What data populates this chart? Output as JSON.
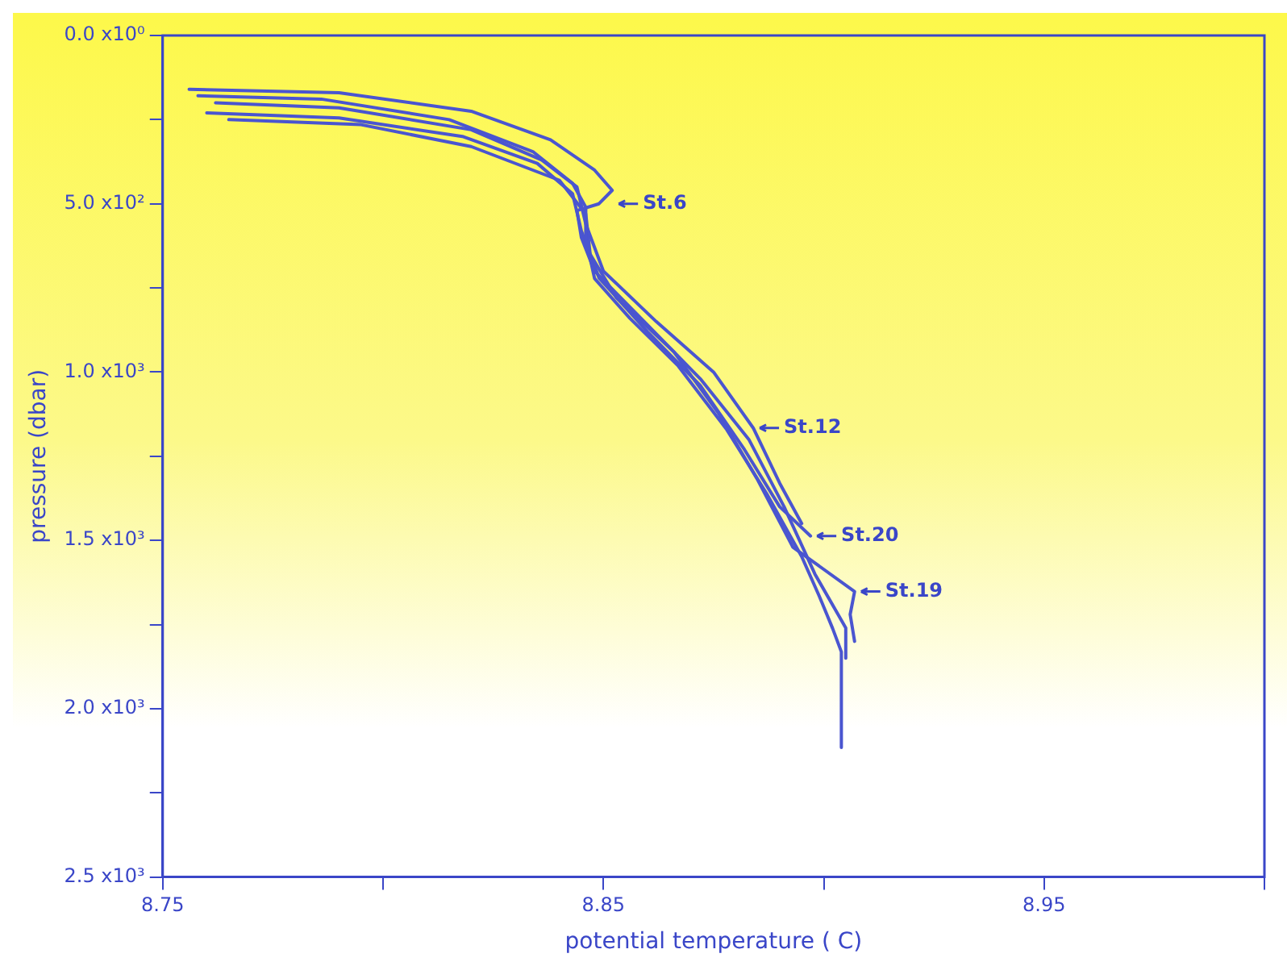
{
  "chart_data": {
    "type": "line",
    "xlabel": "potential temperature ( C)",
    "ylabel": "pressure (dbar)",
    "xlim": [
      8.75,
      9.0
    ],
    "ylim": [
      2500,
      0
    ],
    "xticks": [
      8.75,
      {
        "value": 8.8,
        "label": null
      },
      8.85,
      {
        "value": 8.9,
        "label": null
      },
      8.95,
      {
        "value": 9.0,
        "label": null
      }
    ],
    "yticks": [
      {
        "value": 0,
        "label": "0.0 x10⁰"
      },
      {
        "value": 250,
        "label": null
      },
      {
        "value": 500,
        "label": "5.0 x10²"
      },
      {
        "value": 750,
        "label": null
      },
      {
        "value": 1000,
        "label": "1.0 x10³"
      },
      {
        "value": 1250,
        "label": null
      },
      {
        "value": 1500,
        "label": "1.5 x10³"
      },
      {
        "value": 1750,
        "label": null
      },
      {
        "value": 2000,
        "label": "2.0 x10³"
      },
      {
        "value": 2250,
        "label": null
      },
      {
        "value": 2500,
        "label": "2.5 x10³"
      }
    ],
    "grid": false,
    "legend": false,
    "marker": "none",
    "line_style": "solid",
    "series": [
      {
        "color": "#4a55d0",
        "x": [
          8.756,
          8.79,
          8.82,
          8.838,
          8.848,
          8.852,
          8.849,
          8.844,
          8.845,
          8.848,
          8.86,
          8.872,
          8.883,
          8.891,
          8.898,
          8.905,
          8.905
        ],
        "values": [
          160,
          170,
          225,
          310,
          400,
          460,
          500,
          520,
          600,
          700,
          860,
          1020,
          1200,
          1400,
          1600,
          1760,
          1850
        ]
      },
      {
        "color": "#4a55d0",
        "x": [
          8.758,
          8.786,
          8.815,
          8.834,
          8.843,
          8.846,
          8.846,
          8.848,
          8.856,
          8.867,
          8.878,
          8.887,
          8.895,
          8.899,
          8.902,
          8.904,
          8.904
        ],
        "values": [
          179,
          189,
          250,
          345,
          439,
          510,
          604,
          722,
          840,
          982,
          1171,
          1360,
          1548,
          1666,
          1761,
          1831,
          2115
        ]
      },
      {
        "color": "#4a55d0",
        "x": [
          8.762,
          8.79,
          8.82,
          8.836,
          8.844,
          8.846,
          8.85,
          8.862,
          8.875,
          8.884,
          8.89,
          8.895
        ],
        "values": [
          200,
          215,
          280,
          370,
          450,
          560,
          700,
          850,
          1000,
          1166,
          1330,
          1450
        ]
      },
      {
        "color": "#4a55d0",
        "x": [
          8.76,
          8.79,
          8.818,
          8.835,
          8.843,
          8.845,
          8.849,
          8.86,
          8.872,
          8.882,
          8.89,
          8.897
        ],
        "values": [
          230,
          245,
          300,
          380,
          470,
          580,
          720,
          880,
          1040,
          1230,
          1400,
          1487
        ]
      },
      {
        "color": "#4a55d0",
        "x": [
          8.765,
          8.795,
          8.82,
          8.84,
          8.846,
          8.847,
          8.853,
          8.866,
          8.876,
          8.885,
          8.893,
          8.907,
          8.906,
          8.907
        ],
        "values": [
          250,
          265,
          330,
          430,
          530,
          650,
          780,
          940,
          1120,
          1320,
          1520,
          1652,
          1720,
          1800
        ]
      }
    ],
    "annotations": [
      {
        "text": "St.6",
        "x": 8.852,
        "y": 500
      },
      {
        "text": "St.12",
        "x": 8.884,
        "y": 1166
      },
      {
        "text": "St.20",
        "x": 8.897,
        "y": 1487
      },
      {
        "text": "St.19",
        "x": 8.907,
        "y": 1652
      }
    ]
  }
}
